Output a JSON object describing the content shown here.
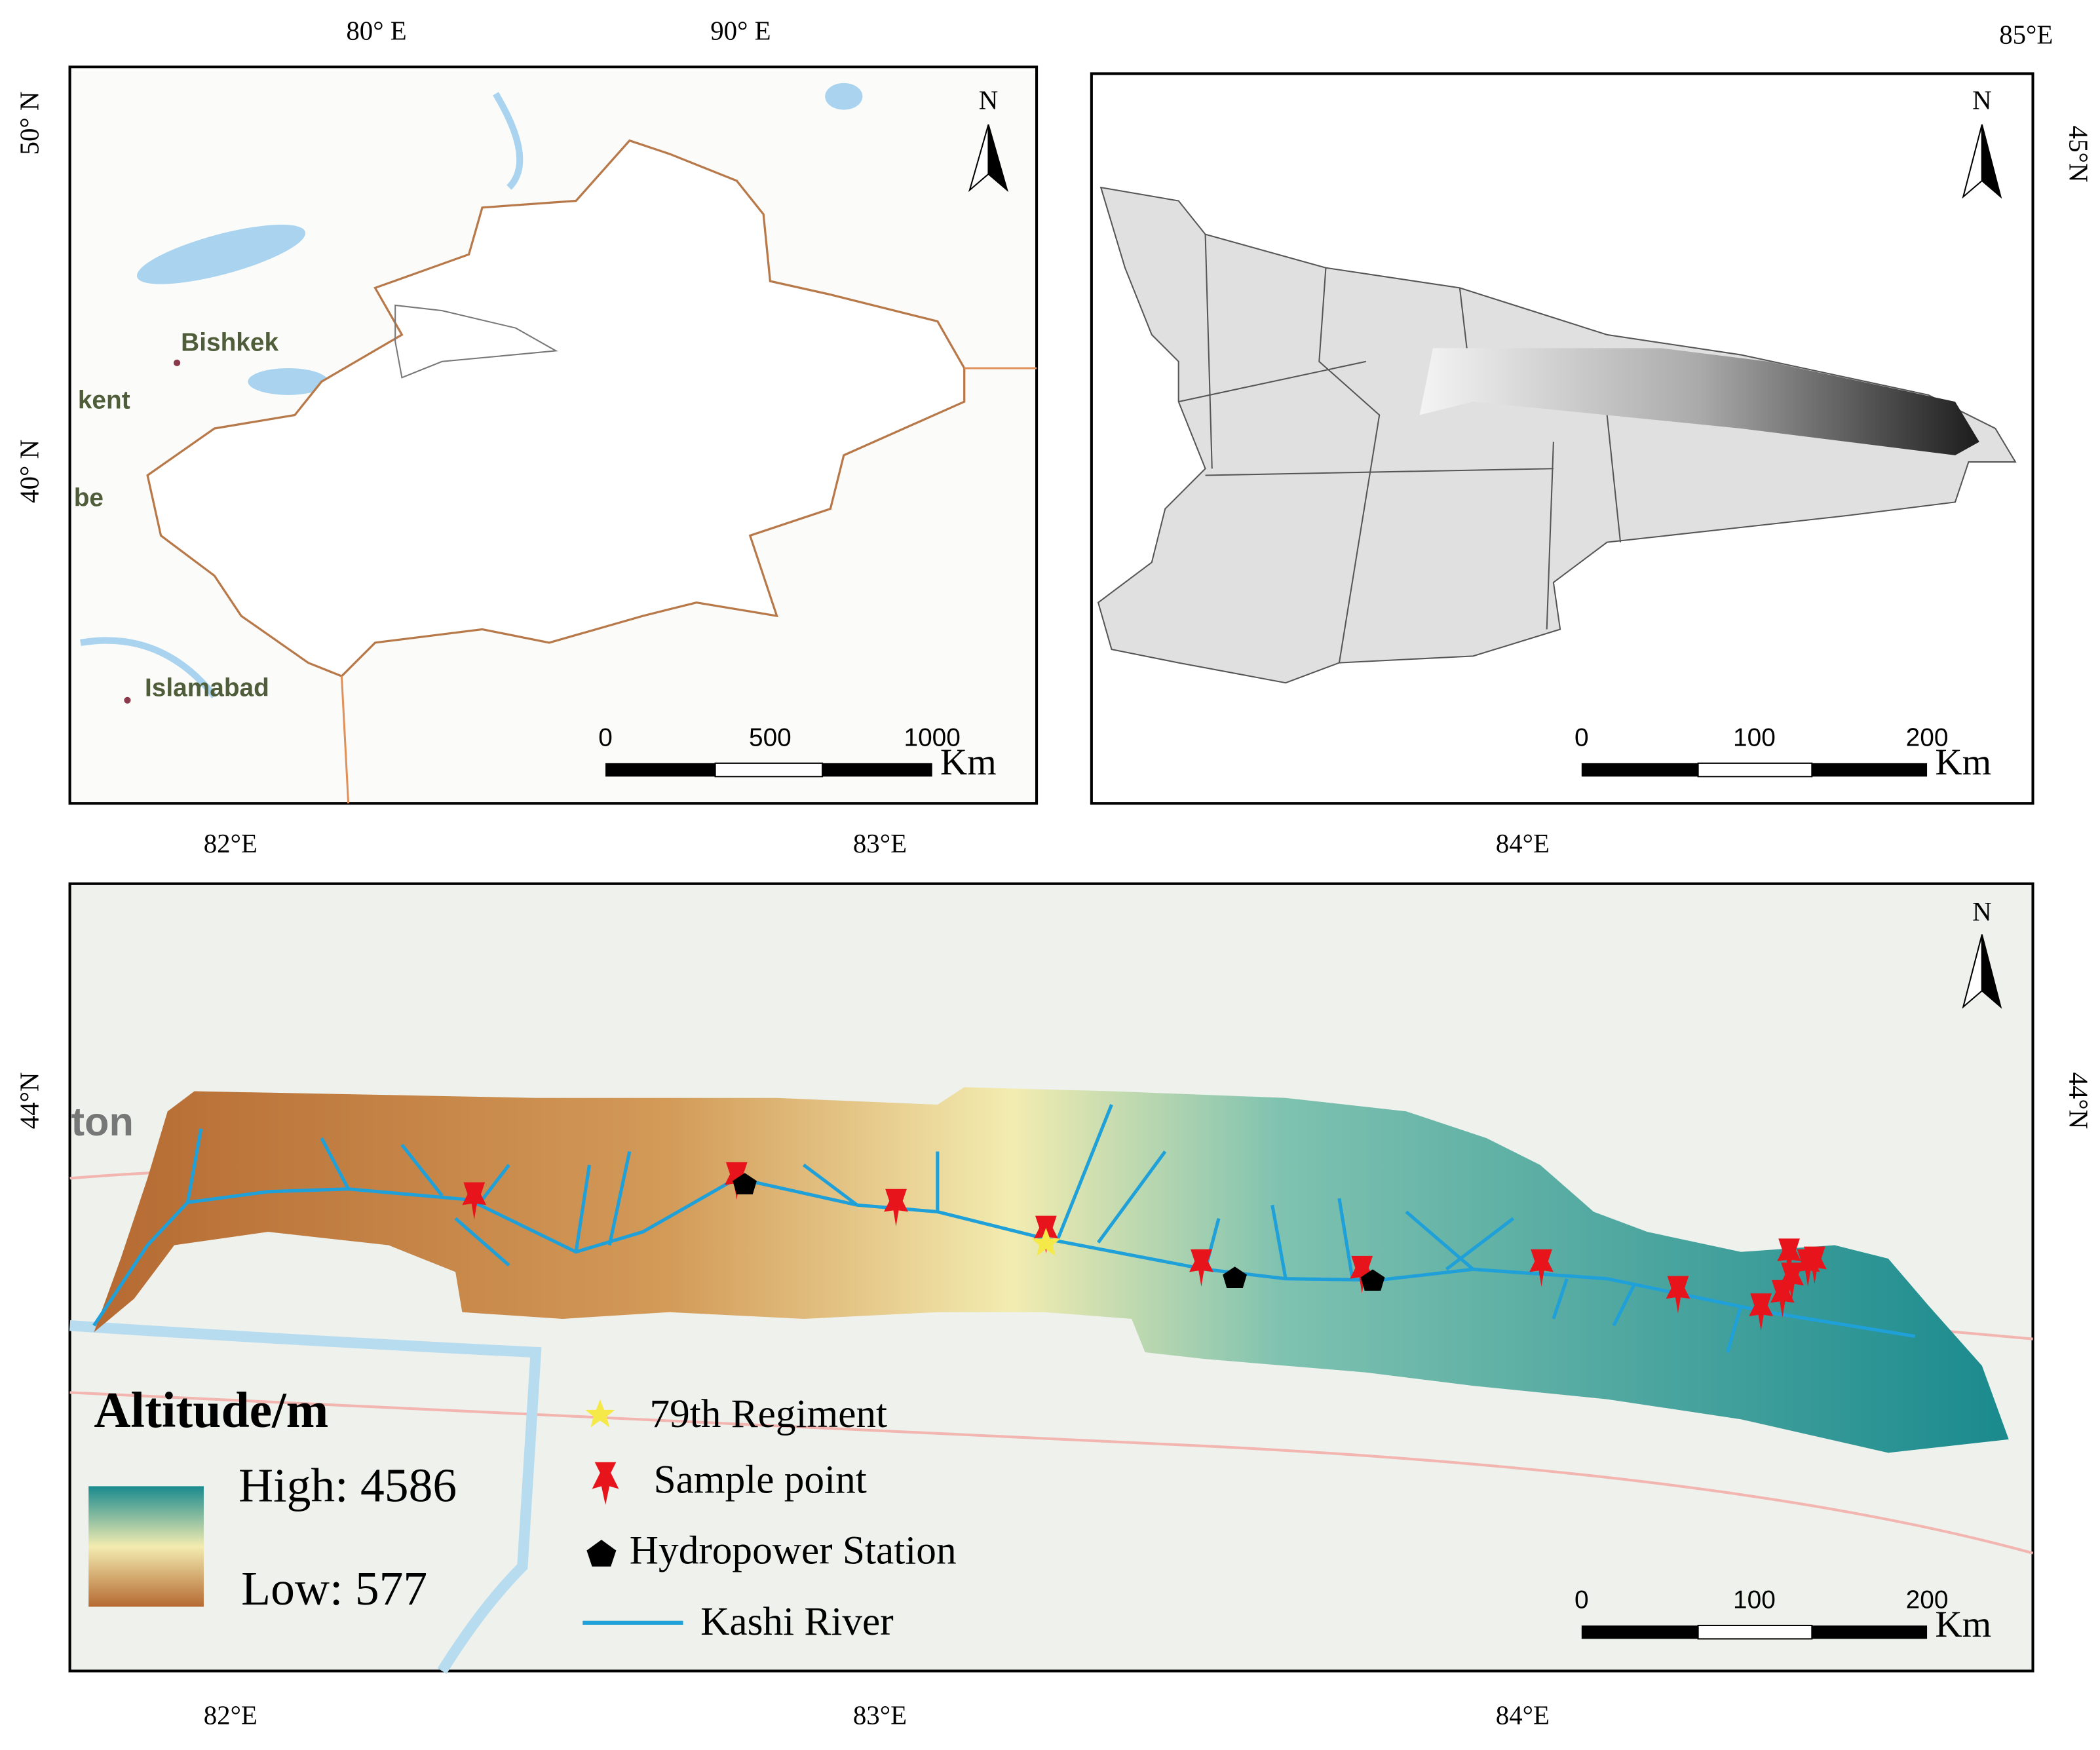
{
  "panel_a": {
    "x_labels": [
      "80° E",
      "90° E"
    ],
    "y_labels": [
      "50° N",
      "40° N"
    ],
    "cities": [
      "Bishkek",
      "kent",
      "be",
      "Islamabad"
    ],
    "north": "N",
    "scale_bar": {
      "labels": [
        "0",
        "500",
        "1000"
      ],
      "unit": "Km"
    }
  },
  "panel_b": {
    "x_labels": [
      "85°E"
    ],
    "y_labels": [
      "45°N"
    ],
    "north": "N",
    "scale_bar": {
      "labels": [
        "0",
        "100",
        "200"
      ],
      "unit": "Km"
    }
  },
  "panel_c": {
    "x_labels": [
      "82°E",
      "83°E",
      "84°E"
    ],
    "y_labels": [
      "44°N"
    ],
    "north": "N",
    "place": "ton",
    "legend": {
      "title": "Altitude/m",
      "high": "High: 4586",
      "low": "Low: 577",
      "items": [
        "79th Regiment",
        "Sample point",
        "Hydropower Station",
        "Kashi River"
      ]
    },
    "scale_bar": {
      "labels": [
        "0",
        "100",
        "200"
      ],
      "unit": "Km"
    }
  }
}
